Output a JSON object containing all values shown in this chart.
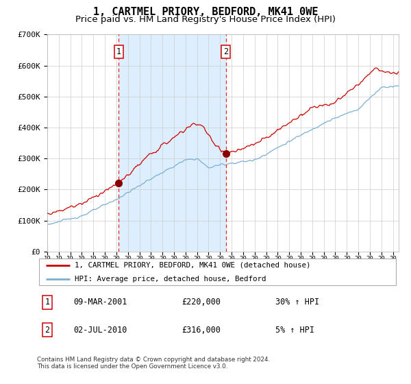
{
  "title": "1, CARTMEL PRIORY, BEDFORD, MK41 0WE",
  "subtitle": "Price paid vs. HM Land Registry's House Price Index (HPI)",
  "ylim": [
    0,
    700000
  ],
  "yticks": [
    0,
    100000,
    200000,
    300000,
    400000,
    500000,
    600000,
    700000
  ],
  "ytick_labels": [
    "£0",
    "£100K",
    "£200K",
    "£300K",
    "£400K",
    "£500K",
    "£600K",
    "£700K"
  ],
  "sale1_date": 2001.19,
  "sale1_price": 220000,
  "sale2_date": 2010.5,
  "sale2_price": 316000,
  "red_line_color": "#cc0000",
  "blue_line_color": "#7aafd4",
  "shade_color": "#ddeeff",
  "dashed_color": "#ee2222",
  "point_color": "#880000",
  "legend_entries": [
    "1, CARTMEL PRIORY, BEDFORD, MK41 0WE (detached house)",
    "HPI: Average price, detached house, Bedford"
  ],
  "table_rows": [
    [
      "1",
      "09-MAR-2001",
      "£220,000",
      "30% ↑ HPI"
    ],
    [
      "2",
      "02-JUL-2010",
      "£316,000",
      "5% ↑ HPI"
    ]
  ],
  "footer": "Contains HM Land Registry data © Crown copyright and database right 2024.\nThis data is licensed under the Open Government Licence v3.0.",
  "background_color": "#ffffff",
  "grid_color": "#cccccc"
}
